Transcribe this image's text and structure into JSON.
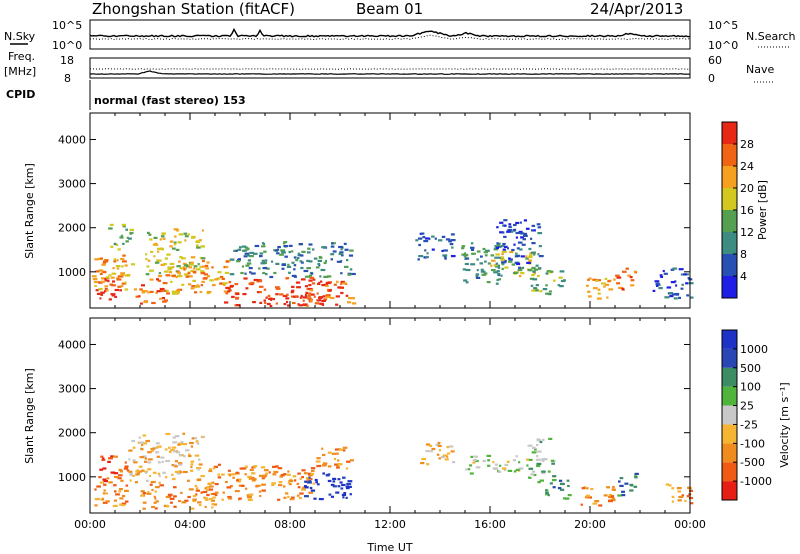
{
  "header": {
    "title": "Zhongshan Station (fitACF)",
    "beam": "Beam 01",
    "date": "24/Apr/2013"
  },
  "top_panel_1": {
    "left_label": "N.Sky",
    "right_label": "N.Search",
    "left_ticks": [
      "10^5",
      "10^0"
    ],
    "right_ticks": [
      "10^5",
      "10^0"
    ]
  },
  "top_panel_2": {
    "left_label_line1": "Freq.",
    "left_label_line2": "[MHz]",
    "right_label": "Nave",
    "left_ticks": [
      "18",
      "8"
    ],
    "right_ticks": [
      "60",
      "0"
    ]
  },
  "cpid": {
    "label": "CPID",
    "text": "normal (fast stereo) 153"
  },
  "colors": {
    "power_scale": [
      "#1e1ee6",
      "#2850b4",
      "#3c8c82",
      "#55a050",
      "#d2c81e",
      "#f5a01e",
      "#f06414",
      "#e62814"
    ],
    "velocity_scale": [
      "#e61e14",
      "#f05a14",
      "#f08c1e",
      "#f5b432",
      "#c8c8c8",
      "#50b43c",
      "#3c8c64",
      "#2846b4",
      "#1e32c8"
    ]
  },
  "chart_data": [
    {
      "type": "heatmap",
      "name": "power",
      "ylabel": "Slant Range [km]",
      "yticks": [
        1000,
        2000,
        3000,
        4000
      ],
      "ylim": [
        180,
        4600
      ],
      "xlim_hours": [
        0,
        24
      ],
      "colorbar_label": "Power [dB]",
      "colorbar_ticks": [
        "4",
        "8",
        "12",
        "16",
        "20",
        "24",
        "28"
      ],
      "colorbar_range": [
        0,
        32
      ],
      "regions": [
        {
          "t0": 0.1,
          "t1": 1.2,
          "r0": 350,
          "r1": 900,
          "level": 7
        },
        {
          "t0": 0.0,
          "t1": 1.8,
          "r0": 600,
          "r1": 1400,
          "level": 5
        },
        {
          "t0": 0.7,
          "t1": 1.6,
          "r0": 1500,
          "r1": 2100,
          "level": 3
        },
        {
          "t0": 1.8,
          "t1": 3.0,
          "r0": 300,
          "r1": 900,
          "level": 6
        },
        {
          "t0": 2.2,
          "t1": 4.5,
          "r0": 900,
          "r1": 2000,
          "level": 4
        },
        {
          "t0": 3.0,
          "t1": 5.5,
          "r0": 500,
          "r1": 1300,
          "level": 5
        },
        {
          "t0": 5.0,
          "t1": 9.5,
          "r0": 250,
          "r1": 900,
          "level": 7
        },
        {
          "t0": 5.5,
          "t1": 10.5,
          "r0": 900,
          "r1": 1700,
          "level": 2
        },
        {
          "t0": 8.5,
          "t1": 10.5,
          "r0": 250,
          "r1": 800,
          "level": 6
        },
        {
          "t0": 13.0,
          "t1": 14.5,
          "r0": 1300,
          "r1": 1900,
          "level": 1
        },
        {
          "t0": 14.8,
          "t1": 16.5,
          "r0": 700,
          "r1": 1700,
          "level": 2
        },
        {
          "t0": 16.0,
          "t1": 17.8,
          "r0": 900,
          "r1": 1500,
          "level": 4
        },
        {
          "t0": 16.2,
          "t1": 18.0,
          "r0": 1100,
          "r1": 2200,
          "level": 1
        },
        {
          "t0": 17.5,
          "t1": 19.0,
          "r0": 500,
          "r1": 1100,
          "level": 3
        },
        {
          "t0": 19.8,
          "t1": 21.0,
          "r0": 400,
          "r1": 900,
          "level": 5
        },
        {
          "t0": 21.0,
          "t1": 21.8,
          "r0": 600,
          "r1": 1100,
          "level": 6
        },
        {
          "t0": 22.5,
          "t1": 24.0,
          "r0": 400,
          "r1": 1100,
          "level": 1
        }
      ]
    },
    {
      "type": "heatmap",
      "name": "velocity",
      "ylabel": "Slant Range [km]",
      "xlabel": "Time UT",
      "yticks": [
        1000,
        2000,
        3000,
        4000
      ],
      "ylim": [
        180,
        4600
      ],
      "xlim_hours": [
        0,
        24
      ],
      "xticks": [
        "00:00",
        "04:00",
        "08:00",
        "12:00",
        "16:00",
        "20:00",
        "00:00"
      ],
      "colorbar_label": "Velocity [m s⁻¹]",
      "colorbar_ticks": [
        "-1000",
        "-500",
        "-100",
        "-25",
        "25",
        "100",
        "500",
        "1000"
      ],
      "regions": [
        {
          "t0": 0.1,
          "t1": 1.4,
          "r0": 350,
          "r1": 900,
          "level": 2
        },
        {
          "t0": 0.3,
          "t1": 1.5,
          "r0": 800,
          "r1": 1500,
          "level": 1
        },
        {
          "t0": 1.5,
          "t1": 4.5,
          "r0": 900,
          "r1": 2000,
          "level": 3
        },
        {
          "t0": 2.0,
          "t1": 5.0,
          "r0": 300,
          "r1": 900,
          "level": 2
        },
        {
          "t0": 4.5,
          "t1": 9.0,
          "r0": 500,
          "r1": 1300,
          "level": 2
        },
        {
          "t0": 8.5,
          "t1": 10.5,
          "r0": 500,
          "r1": 1100,
          "level": 8
        },
        {
          "t0": 9.0,
          "t1": 10.5,
          "r0": 1200,
          "r1": 1700,
          "level": 2
        },
        {
          "t0": 13.2,
          "t1": 14.5,
          "r0": 1300,
          "r1": 1800,
          "level": 3
        },
        {
          "t0": 15.0,
          "t1": 17.5,
          "r0": 1100,
          "r1": 1500,
          "level": 4
        },
        {
          "t0": 17.5,
          "t1": 18.5,
          "r0": 900,
          "r1": 1900,
          "level": 5
        },
        {
          "t0": 18.2,
          "t1": 19.2,
          "r0": 500,
          "r1": 1000,
          "level": 6
        },
        {
          "t0": 19.5,
          "t1": 21.0,
          "r0": 350,
          "r1": 800,
          "level": 2
        },
        {
          "t0": 21.0,
          "t1": 21.8,
          "r0": 600,
          "r1": 1100,
          "level": 6
        },
        {
          "t0": 23.0,
          "t1": 24.0,
          "r0": 400,
          "r1": 900,
          "level": 2
        }
      ]
    }
  ]
}
